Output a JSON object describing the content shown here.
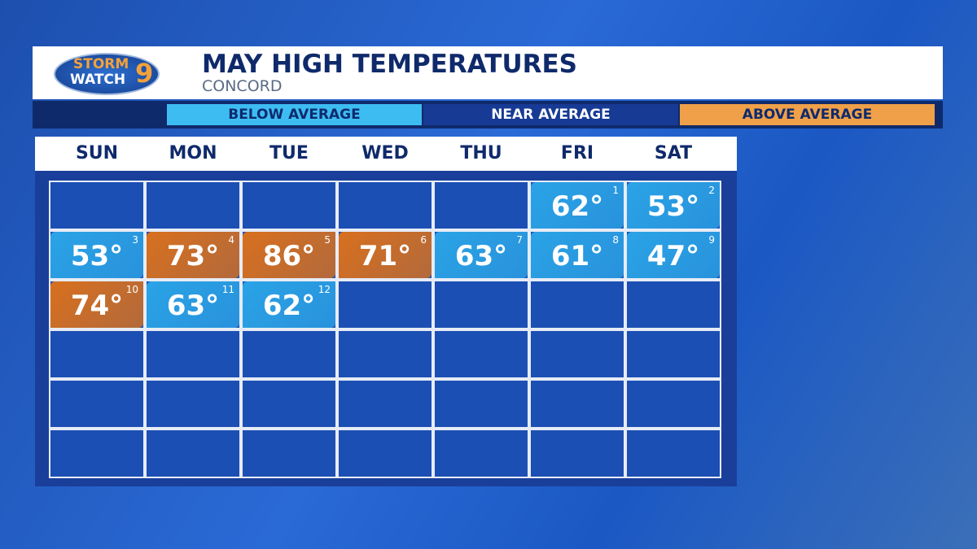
{
  "header": {
    "logo": {
      "line1": "STORM",
      "line2": "WATCH",
      "badge": "9"
    },
    "title": "MAY HIGH TEMPERATURES",
    "subtitle": "CONCORD"
  },
  "legend": [
    {
      "label": "BELOW AVERAGE",
      "color": "#3dbcf2",
      "text_color": "#0d2a6e"
    },
    {
      "label": "NEAR AVERAGE",
      "color": "#173a95",
      "text_color": "#ffffff"
    },
    {
      "label": "ABOVE AVERAGE",
      "color": "#f0a048",
      "text_color": "#0d2a6e"
    }
  ],
  "days": [
    "SUN",
    "MON",
    "TUE",
    "WED",
    "THU",
    "FRI",
    "SAT"
  ],
  "weeks": [
    [
      null,
      null,
      null,
      null,
      null,
      {
        "day": 1,
        "temp": "62°",
        "color": "#2ba3e6"
      },
      {
        "day": 2,
        "temp": "53°",
        "color": "#2ba3e6"
      }
    ],
    [
      {
        "day": 3,
        "temp": "53°",
        "color": "#2ba3e6"
      },
      {
        "day": 4,
        "temp": "73°",
        "color": "#d8701e"
      },
      {
        "day": 5,
        "temp": "86°",
        "color": "#d8701e"
      },
      {
        "day": 6,
        "temp": "71°",
        "color": "#d8701e"
      },
      {
        "day": 7,
        "temp": "63°",
        "color": "#2ba3e6"
      },
      {
        "day": 8,
        "temp": "61°",
        "color": "#2ba3e6"
      },
      {
        "day": 9,
        "temp": "47°",
        "color": "#2ba3e6"
      }
    ],
    [
      {
        "day": 10,
        "temp": "74°",
        "color": "#d8701e"
      },
      {
        "day": 11,
        "temp": "63°",
        "color": "#2ba3e6"
      },
      {
        "day": 12,
        "temp": "62°",
        "color": "#2ba3e6"
      },
      null,
      null,
      null,
      null
    ],
    [
      null,
      null,
      null,
      null,
      null,
      null,
      null
    ],
    [
      null,
      null,
      null,
      null,
      null,
      null,
      null
    ],
    [
      null,
      null,
      null,
      null,
      null,
      null,
      null
    ]
  ]
}
